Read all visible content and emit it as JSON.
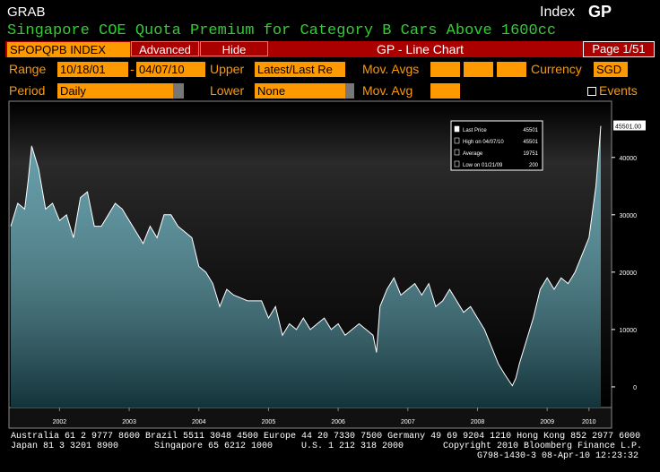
{
  "header": {
    "left": "GRAB",
    "right_prefix": "Index",
    "right_code": "GP"
  },
  "title": "Singapore COE Quota Premium for Category B Cars Above 1600cc",
  "toolbar": {
    "security": "SPOPQPB INDEX",
    "advanced": "Advanced",
    "hide": "Hide",
    "view": "GP - Line Chart",
    "page": "Page 1/51"
  },
  "controls": {
    "range_label": "Range",
    "range_start": "10/18/01",
    "range_sep": "-",
    "range_end": "04/07/10",
    "upper_label": "Upper",
    "upper_value": "Latest/Last Re",
    "mov_avgs_label": "Mov. Avgs",
    "currency_label": "Currency",
    "currency_value": "SGD",
    "period_label": "Period",
    "period_value": "Daily",
    "lower_label": "Lower",
    "lower_value": "None",
    "mov_avg_label": "Mov. Avg",
    "events_label": "Events"
  },
  "chart_data": {
    "type": "area",
    "x": [
      2001.8,
      2001.9,
      2002.0,
      2002.05,
      2002.1,
      2002.2,
      2002.3,
      2002.4,
      2002.5,
      2002.6,
      2002.7,
      2002.8,
      2002.9,
      2003.0,
      2003.1,
      2003.2,
      2003.3,
      2003.4,
      2003.5,
      2003.6,
      2003.7,
      2003.8,
      2003.9,
      2004.0,
      2004.1,
      2004.2,
      2004.3,
      2004.4,
      2004.5,
      2004.6,
      2004.7,
      2004.8,
      2004.9,
      2005.0,
      2005.2,
      2005.4,
      2005.5,
      2005.6,
      2005.7,
      2005.8,
      2005.9,
      2006.0,
      2006.1,
      2006.2,
      2006.3,
      2006.4,
      2006.5,
      2006.6,
      2006.7,
      2006.8,
      2006.9,
      2007.0,
      2007.05,
      2007.1,
      2007.2,
      2007.3,
      2007.4,
      2007.5,
      2007.6,
      2007.7,
      2007.8,
      2007.9,
      2008.0,
      2008.1,
      2008.2,
      2008.3,
      2008.4,
      2008.5,
      2008.6,
      2008.7,
      2008.8,
      2008.9,
      2009.0,
      2009.05,
      2009.1,
      2009.2,
      2009.3,
      2009.4,
      2009.5,
      2009.6,
      2009.7,
      2009.8,
      2009.9,
      2010.0,
      2010.1,
      2010.2,
      2010.27
    ],
    "values": [
      28000,
      32000,
      31000,
      36000,
      42000,
      38000,
      31000,
      32000,
      29000,
      30000,
      26000,
      33000,
      34000,
      28000,
      28000,
      30000,
      32000,
      31000,
      29000,
      27000,
      25000,
      28000,
      26000,
      30000,
      30000,
      28000,
      27000,
      26000,
      21000,
      20000,
      18000,
      14000,
      17000,
      16000,
      15000,
      15000,
      12000,
      14000,
      9000,
      11000,
      10000,
      12000,
      10000,
      11000,
      12000,
      10000,
      11000,
      9000,
      10000,
      11000,
      10000,
      9000,
      6000,
      14000,
      17000,
      19000,
      16000,
      17000,
      18000,
      16000,
      18000,
      14000,
      15000,
      17000,
      15000,
      13000,
      14000,
      12000,
      10000,
      7000,
      4000,
      2000,
      200,
      1500,
      4000,
      8000,
      12000,
      17000,
      19000,
      17000,
      19000,
      18000,
      20000,
      23000,
      26000,
      35000,
      45501
    ],
    "color": "#ffffff",
    "fill_color": "#2f7f8f",
    "xlim": [
      2001.8,
      2010.27
    ],
    "xticks": [
      {
        "value": 2002.5,
        "label": "2002"
      },
      {
        "value": 2003.5,
        "label": "2003"
      },
      {
        "value": 2004.5,
        "label": "2004"
      },
      {
        "value": 2005.5,
        "label": "2005"
      },
      {
        "value": 2006.5,
        "label": "2006"
      },
      {
        "value": 2007.5,
        "label": "2007"
      },
      {
        "value": 2008.5,
        "label": "2008"
      },
      {
        "value": 2009.5,
        "label": "2009"
      },
      {
        "value": 2010.1,
        "label": "2010"
      }
    ],
    "ylim": [
      -3600,
      49800
    ],
    "yticks": [
      0,
      10000,
      20000,
      30000,
      40000
    ],
    "last_label": "45501.00",
    "legend_stats": [
      {
        "label": "Last Price",
        "value": 45501
      },
      {
        "label": "High on 04/07/10",
        "value": 45501
      },
      {
        "label": "Average",
        "value": 19751
      },
      {
        "label": "Low on 01/21/09",
        "value": 200
      }
    ]
  },
  "footer": {
    "line1": "Australia 61 2 9777 8600 Brazil 5511 3048 4500 Europe 44 20 7330 7500 Germany 49 69 9204 1210 Hong Kong 852 2977 6000",
    "japan": "Japan 81 3 3201 8900",
    "singapore": "Singapore 65 6212 1000",
    "us": "U.S. 1 212 318 2000",
    "copyright": "Copyright 2010 Bloomberg Finance L.P.",
    "stamp": "G798-1430-3 08-Apr-10 12:23:32"
  }
}
